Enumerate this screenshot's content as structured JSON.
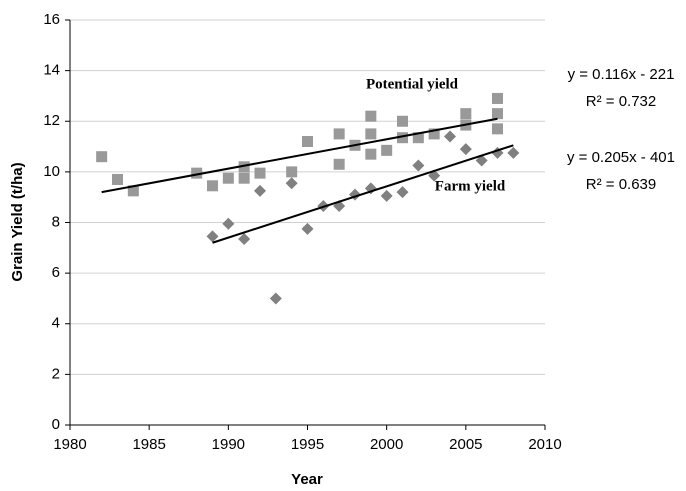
{
  "chart_data": {
    "type": "scatter",
    "x_label": "Year",
    "y_label": "Grain Yield (t/ha)",
    "xlim": [
      1980,
      2010
    ],
    "xticks": [
      1980,
      1985,
      1990,
      1995,
      2000,
      2005,
      2010
    ],
    "ylim": [
      0,
      16
    ],
    "yticks": [
      0,
      2,
      4,
      6,
      8,
      10,
      12,
      14,
      16
    ],
    "grid": true,
    "series": [
      {
        "name": "Potential yield",
        "marker": "square",
        "color": "#999999",
        "x": [
          1982,
          1983,
          1984,
          1988,
          1989,
          1990,
          1991,
          1991,
          1992,
          1994,
          1995,
          1997,
          1997,
          1998,
          1999,
          1999,
          1999,
          2000,
          2001,
          2001,
          2002,
          2003,
          2005,
          2005,
          2007,
          2007,
          2007
        ],
        "values": [
          10.6,
          9.7,
          9.25,
          9.95,
          9.45,
          9.75,
          10.2,
          9.75,
          9.95,
          10.0,
          11.2,
          11.5,
          10.3,
          11.05,
          12.2,
          11.5,
          10.7,
          10.85,
          12.0,
          11.35,
          11.35,
          11.5,
          12.3,
          11.85,
          12.9,
          12.3,
          11.7
        ],
        "trendline": {
          "x": [
            1982,
            2007
          ],
          "values": [
            9.2,
            12.1
          ]
        },
        "equation": "y = 0.116x - 221",
        "r2": "R² = 0.732"
      },
      {
        "name": "Farm yield",
        "marker": "diamond",
        "color": "#808080",
        "x": [
          1989,
          1990,
          1991,
          1992,
          1993,
          1994,
          1995,
          1996,
          1997,
          1998,
          1999,
          2000,
          2001,
          2002,
          2003,
          2004,
          2005,
          2006,
          2007,
          2008
        ],
        "values": [
          7.45,
          7.95,
          7.35,
          9.25,
          5.0,
          9.55,
          7.75,
          8.65,
          8.65,
          9.1,
          9.35,
          9.05,
          9.2,
          10.25,
          9.85,
          11.4,
          10.9,
          10.45,
          10.75,
          10.75
        ],
        "trendline": {
          "x": [
            1989,
            2008
          ],
          "values": [
            7.2,
            11.05
          ]
        },
        "equation": "y = 0.205x - 401",
        "r2": "R² = 0.639"
      }
    ]
  }
}
